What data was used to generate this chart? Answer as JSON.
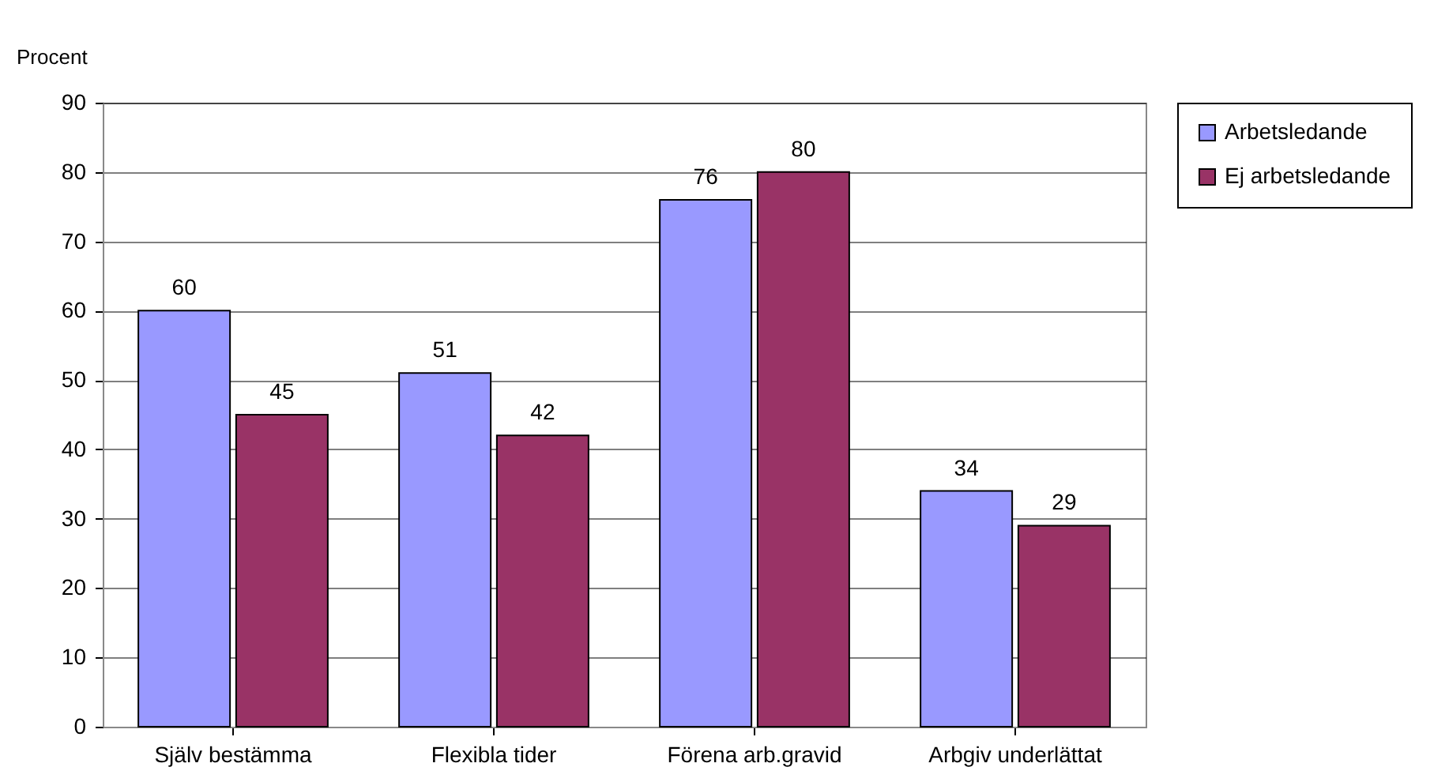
{
  "chart_data": {
    "type": "bar",
    "ylabel": "Procent",
    "categories": [
      "Själv bestämma",
      "Flexibla tider",
      "Förena arb.gravid",
      "Arbgiv underlättat"
    ],
    "series": [
      {
        "name": "Arbetsledande",
        "color": "#9999ff",
        "values": [
          60,
          51,
          76,
          34
        ]
      },
      {
        "name": "Ej arbetsledande",
        "color": "#993366",
        "values": [
          45,
          42,
          80,
          29
        ]
      }
    ],
    "ylim": [
      0,
      90
    ],
    "yticks": [
      0,
      10,
      20,
      30,
      40,
      50,
      60,
      70,
      80,
      90
    ],
    "grid": "y",
    "legend": "right",
    "data_labels": true
  }
}
